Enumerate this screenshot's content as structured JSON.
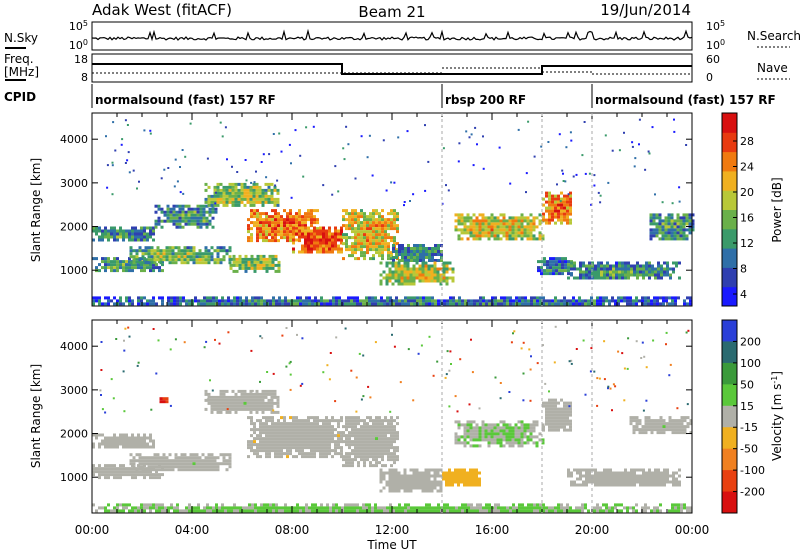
{
  "header": {
    "station": "Adak West (fitACF)",
    "beam": "Beam 21",
    "date": "19/Jun/2014"
  },
  "top_panels": {
    "nsky_label": "N.Sky",
    "nsky_ticks": [
      "10^5",
      "10^0"
    ],
    "nsearch_label": "N.Search",
    "nsearch_ticks": [
      "10^5",
      "10^0"
    ],
    "freq_label": "Freq.",
    "freq_unit": "[MHz]",
    "freq_ticks": [
      "18",
      "8"
    ],
    "nave_label": "Nave",
    "nave_ticks": [
      "60",
      "0"
    ],
    "cpid_label": "CPID",
    "cpid_segments": [
      {
        "label": "normalsound (fast) 157 RF",
        "start_h": 0,
        "end_h": 14
      },
      {
        "label": "rbsp 200 RF",
        "start_h": 14,
        "end_h": 20
      },
      {
        "label": "normalsound (fast) 157 RF",
        "start_h": 20,
        "end_h": 24
      }
    ]
  },
  "axes": {
    "xlabel": "Time UT",
    "x_ticks": [
      "00:00",
      "04:00",
      "08:00",
      "12:00",
      "16:00",
      "20:00",
      "00:00"
    ],
    "ylabel": "Slant Range [km]",
    "y_ticks": [
      "4000",
      "3000",
      "2000",
      "1000"
    ]
  },
  "power_colorbar": {
    "label": "Power [dB]",
    "ticks": [
      "28",
      "24",
      "20",
      "16",
      "12",
      "8",
      "4"
    ],
    "colors": [
      "#1a1aff",
      "#2f3fb0",
      "#2f6fa8",
      "#3a9a6a",
      "#6ab04a",
      "#b8c838",
      "#f0b020",
      "#f07a10",
      "#e83a10",
      "#d81010"
    ]
  },
  "velocity_colorbar": {
    "label": "Velocity [m s^-1]",
    "ticks": [
      "200",
      "100",
      "50",
      "15",
      "-15",
      "-50",
      "-100",
      "-200"
    ],
    "colors": [
      "#2a3fd8",
      "#2a6a70",
      "#3a9a3a",
      "#5ac83a",
      "#b0b0a8",
      "#f0b020",
      "#f08020",
      "#e84010",
      "#d81010"
    ]
  },
  "chart_data": [
    {
      "type": "heatmap",
      "name": "Power",
      "xlim": [
        0,
        24
      ],
      "ylim": [
        180,
        4600
      ],
      "clim": [
        0,
        32
      ],
      "echo_regions": [
        {
          "x": [
            0.0,
            2.8
          ],
          "y": [
            1000,
            1300
          ],
          "v": 10
        },
        {
          "x": [
            1.5,
            5.5
          ],
          "y": [
            1150,
            1550
          ],
          "v": 12
        },
        {
          "x": [
            5.5,
            7.5
          ],
          "y": [
            1000,
            1350
          ],
          "v": 14
        },
        {
          "x": [
            0.0,
            2.5
          ],
          "y": [
            1700,
            2000
          ],
          "v": 8
        },
        {
          "x": [
            2.5,
            5.0
          ],
          "y": [
            2000,
            2500
          ],
          "v": 9
        },
        {
          "x": [
            4.5,
            7.5
          ],
          "y": [
            2500,
            3000
          ],
          "v": 14
        },
        {
          "x": [
            6.2,
            9.0
          ],
          "y": [
            1700,
            2400
          ],
          "v": 22
        },
        {
          "x": [
            8.0,
            10.0
          ],
          "y": [
            1400,
            2000
          ],
          "v": 24
        },
        {
          "x": [
            10.0,
            12.2
          ],
          "y": [
            1300,
            2400
          ],
          "v": 18
        },
        {
          "x": [
            12.0,
            14.0
          ],
          "y": [
            1200,
            1600
          ],
          "v": 8
        },
        {
          "x": [
            11.5,
            14.5
          ],
          "y": [
            700,
            1200
          ],
          "v": 16
        },
        {
          "x": [
            14.5,
            18.0
          ],
          "y": [
            1750,
            2300
          ],
          "v": 17
        },
        {
          "x": [
            18.0,
            19.2
          ],
          "y": [
            2100,
            2800
          ],
          "v": 22
        },
        {
          "x": [
            17.8,
            19.2
          ],
          "y": [
            900,
            1300
          ],
          "v": 7
        },
        {
          "x": [
            19.0,
            23.5
          ],
          "y": [
            800,
            1200
          ],
          "v": 9
        },
        {
          "x": [
            22.3,
            24.0
          ],
          "y": [
            1700,
            2300
          ],
          "v": 9
        },
        {
          "x": [
            0.0,
            24.0
          ],
          "y": [
            200,
            400
          ],
          "v": 6
        }
      ]
    },
    {
      "type": "heatmap",
      "name": "Velocity",
      "xlim": [
        0,
        24
      ],
      "ylim": [
        180,
        4600
      ],
      "clim": [
        -250,
        250
      ],
      "echo_regions": [
        {
          "x": [
            0.0,
            2.8
          ],
          "y": [
            1000,
            1300
          ],
          "v": 0
        },
        {
          "x": [
            1.5,
            5.5
          ],
          "y": [
            1150,
            1550
          ],
          "v": 0
        },
        {
          "x": [
            0.0,
            2.5
          ],
          "y": [
            1700,
            2000
          ],
          "v": 0
        },
        {
          "x": [
            4.5,
            7.5
          ],
          "y": [
            2500,
            3000
          ],
          "v": 0
        },
        {
          "x": [
            6.2,
            10.0
          ],
          "y": [
            1500,
            2400
          ],
          "v": -10
        },
        {
          "x": [
            10.0,
            12.2
          ],
          "y": [
            1300,
            2400
          ],
          "v": 0
        },
        {
          "x": [
            11.5,
            14.0
          ],
          "y": [
            700,
            1200
          ],
          "v": 0
        },
        {
          "x": [
            14.0,
            15.5
          ],
          "y": [
            800,
            1200
          ],
          "v": -60
        },
        {
          "x": [
            14.5,
            18.0
          ],
          "y": [
            1750,
            2300
          ],
          "v": 20
        },
        {
          "x": [
            18.0,
            19.2
          ],
          "y": [
            2100,
            2800
          ],
          "v": 0
        },
        {
          "x": [
            19.0,
            23.5
          ],
          "y": [
            800,
            1200
          ],
          "v": 0
        },
        {
          "x": [
            21.5,
            24.0
          ],
          "y": [
            2000,
            2400
          ],
          "v": 0
        },
        {
          "x": [
            2.7,
            3.0
          ],
          "y": [
            2750,
            2900
          ],
          "v": -200
        },
        {
          "x": [
            0.0,
            24.0
          ],
          "y": [
            200,
            400
          ],
          "v": 30
        }
      ]
    }
  ]
}
